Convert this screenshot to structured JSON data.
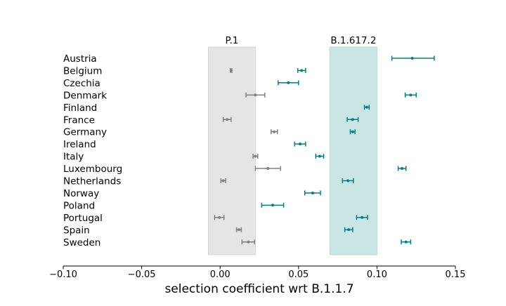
{
  "chart_data": {
    "type": "scatter",
    "xlabel": "selection coefficient wrt B.1.1.7",
    "xlim": [
      -0.1,
      0.15
    ],
    "xticks": [
      -0.1,
      -0.05,
      0.0,
      0.05,
      0.1,
      0.15
    ],
    "xtick_labels": [
      "−0.10",
      "−0.05",
      "0.00",
      "0.05",
      "0.10",
      "0.15"
    ],
    "categories": [
      "Austria",
      "Belgium",
      "Czechia",
      "Denmark",
      "Finland",
      "France",
      "Germany",
      "Ireland",
      "Italy",
      "Luxembourg",
      "Netherlands",
      "Norway",
      "Poland",
      "Portugal",
      "Spain",
      "Sweden"
    ],
    "bands": [
      {
        "label": "P.1",
        "x0": -0.0075,
        "x1": 0.0225,
        "color": "#e5e5e5"
      },
      {
        "label": "B.1.617.2",
        "x0": 0.07,
        "x1": 0.1,
        "color": "#c9e6e4"
      }
    ],
    "series": [
      {
        "name": "P.1",
        "color": "#808080",
        "points": [
          {
            "y": "Belgium",
            "x": 0.007,
            "lo": 0.0065,
            "hi": 0.0075
          },
          {
            "y": "Denmark",
            "x": 0.0225,
            "lo": 0.0165,
            "hi": 0.0285
          },
          {
            "y": "France",
            "x": 0.0045,
            "lo": 0.002,
            "hi": 0.007
          },
          {
            "y": "Germany",
            "x": 0.0345,
            "lo": 0.0325,
            "hi": 0.0365
          },
          {
            "y": "Italy",
            "x": 0.0225,
            "lo": 0.021,
            "hi": 0.024
          },
          {
            "y": "Luxembourg",
            "x": 0.0305,
            "lo": 0.0225,
            "hi": 0.0385
          },
          {
            "y": "Netherlands",
            "x": 0.002,
            "lo": 0.0005,
            "hi": 0.0035
          },
          {
            "y": "Portugal",
            "x": -0.0005,
            "lo": -0.0035,
            "hi": 0.0025
          },
          {
            "y": "Spain",
            "x": 0.012,
            "lo": 0.0105,
            "hi": 0.0135
          },
          {
            "y": "Sweden",
            "x": 0.018,
            "lo": 0.014,
            "hi": 0.022
          }
        ]
      },
      {
        "name": "B.1.617.2",
        "color": "#008080",
        "points": [
          {
            "y": "Austria",
            "x": 0.1225,
            "lo": 0.1095,
            "hi": 0.1365
          },
          {
            "y": "Belgium",
            "x": 0.052,
            "lo": 0.0495,
            "hi": 0.0545
          },
          {
            "y": "Czechia",
            "x": 0.0435,
            "lo": 0.037,
            "hi": 0.05
          },
          {
            "y": "Denmark",
            "x": 0.1215,
            "lo": 0.118,
            "hi": 0.125
          },
          {
            "y": "Finland",
            "x": 0.0935,
            "lo": 0.092,
            "hi": 0.095
          },
          {
            "y": "France",
            "x": 0.0845,
            "lo": 0.081,
            "hi": 0.088
          },
          {
            "y": "Germany",
            "x": 0.0845,
            "lo": 0.083,
            "hi": 0.086
          },
          {
            "y": "Ireland",
            "x": 0.051,
            "lo": 0.0475,
            "hi": 0.0545
          },
          {
            "y": "Italy",
            "x": 0.0635,
            "lo": 0.061,
            "hi": 0.066
          },
          {
            "y": "Luxembourg",
            "x": 0.116,
            "lo": 0.1135,
            "hi": 0.1185
          },
          {
            "y": "Netherlands",
            "x": 0.0815,
            "lo": 0.078,
            "hi": 0.085
          },
          {
            "y": "Norway",
            "x": 0.059,
            "lo": 0.054,
            "hi": 0.064
          },
          {
            "y": "Poland",
            "x": 0.0335,
            "lo": 0.0265,
            "hi": 0.0405
          },
          {
            "y": "Portugal",
            "x": 0.0905,
            "lo": 0.087,
            "hi": 0.094
          },
          {
            "y": "Spain",
            "x": 0.082,
            "lo": 0.0795,
            "hi": 0.0845
          },
          {
            "y": "Sweden",
            "x": 0.1185,
            "lo": 0.1155,
            "hi": 0.1215
          }
        ]
      }
    ]
  }
}
